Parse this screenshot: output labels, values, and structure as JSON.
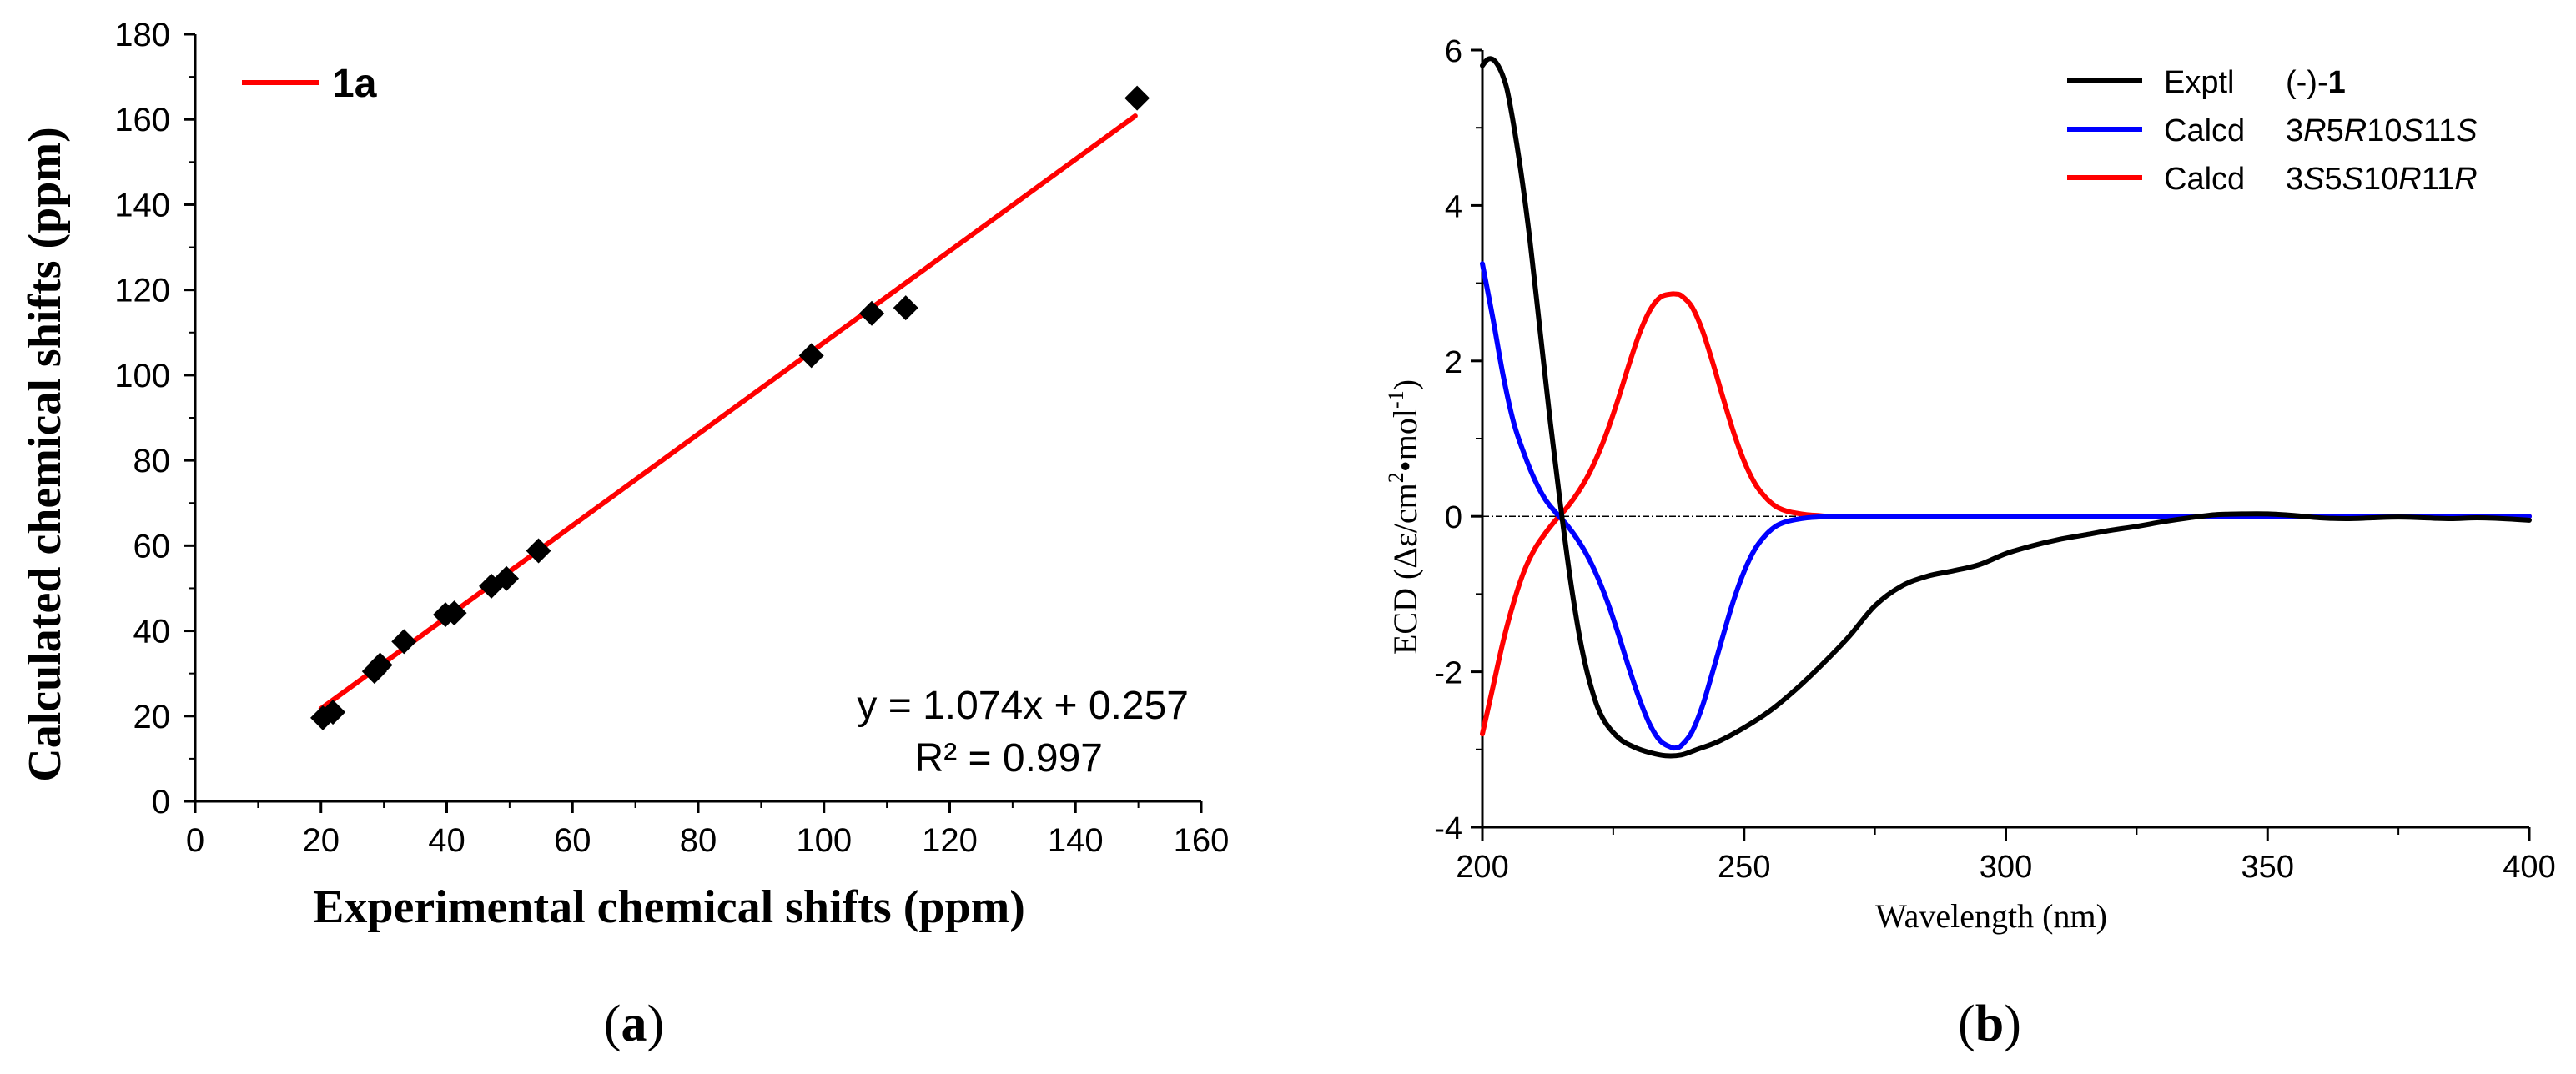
{
  "panel_labels": {
    "a": "(a)",
    "b": "(b)"
  },
  "chart_data": [
    {
      "type": "scatter",
      "panel": "a",
      "title": "",
      "xlabel": "Experimental chemical shifts (ppm)",
      "ylabel": "Calculated chemical shifts (ppm)",
      "xlim": [
        0,
        160
      ],
      "ylim": [
        0,
        180
      ],
      "xticks": [
        0,
        20,
        40,
        60,
        80,
        100,
        120,
        140,
        160
      ],
      "yticks": [
        0,
        20,
        40,
        60,
        80,
        100,
        120,
        140,
        160,
        180
      ],
      "grid": false,
      "legend": {
        "position": "top-left",
        "entries": [
          {
            "label": "1a",
            "color": "#ff0000"
          }
        ]
      },
      "points": [
        {
          "x": 20.3,
          "y": 19.6
        },
        {
          "x": 21.9,
          "y": 20.9
        },
        {
          "x": 28.5,
          "y": 30.5
        },
        {
          "x": 29.4,
          "y": 32.0
        },
        {
          "x": 33.2,
          "y": 37.5
        },
        {
          "x": 39.8,
          "y": 43.8
        },
        {
          "x": 41.2,
          "y": 44.2
        },
        {
          "x": 47.1,
          "y": 50.5
        },
        {
          "x": 49.5,
          "y": 52.3
        },
        {
          "x": 54.6,
          "y": 58.8
        },
        {
          "x": 98.0,
          "y": 104.6
        },
        {
          "x": 107.6,
          "y": 114.5
        },
        {
          "x": 113.0,
          "y": 115.8
        },
        {
          "x": 149.8,
          "y": 165.0
        }
      ],
      "point_color": "#000000",
      "fit": {
        "slope": 1.074,
        "intercept": 0.257,
        "x_range": [
          20,
          149.5
        ],
        "color": "#ff0000"
      },
      "annotations": {
        "equation": "y = 1.074x + 0.257",
        "r2": "R² = 0.997"
      }
    },
    {
      "type": "line",
      "panel": "b",
      "title": "",
      "xlabel": "Wavelength (nm)",
      "ylabel_prefix": "ECD (Δε/cm",
      "ylabel_sup1": "2",
      "ylabel_mid": "•mol",
      "ylabel_sup2": "-1",
      "ylabel_suffix": ")",
      "xlim": [
        200,
        400
      ],
      "ylim": [
        -4,
        6
      ],
      "xticks": [
        200,
        250,
        300,
        350,
        400
      ],
      "yticks": [
        -4,
        -2,
        0,
        2,
        4,
        6
      ],
      "zero_line": true,
      "grid": false,
      "legend": {
        "position": "top-right",
        "entries": [
          {
            "series": "exptl",
            "name": "Exptl",
            "color": "#000000",
            "parts": [
              {
                "t": "(-)-",
                "s": "n"
              },
              {
                "t": "1",
                "s": "b"
              }
            ]
          },
          {
            "series": "calcd_a",
            "name": "Calcd",
            "color": "#0000ff",
            "parts": [
              {
                "t": "3",
                "s": "n"
              },
              {
                "t": "R",
                "s": "i"
              },
              {
                "t": "5",
                "s": "n"
              },
              {
                "t": "R",
                "s": "i"
              },
              {
                "t": "10",
                "s": "n"
              },
              {
                "t": "S",
                "s": "i"
              },
              {
                "t": "11",
                "s": "n"
              },
              {
                "t": "S",
                "s": "i"
              }
            ]
          },
          {
            "series": "calcd_b",
            "name": "Calcd",
            "color": "#ff0000",
            "parts": [
              {
                "t": "3",
                "s": "n"
              },
              {
                "t": "S",
                "s": "i"
              },
              {
                "t": "5",
                "s": "n"
              },
              {
                "t": "S",
                "s": "i"
              },
              {
                "t": "10",
                "s": "n"
              },
              {
                "t": "R",
                "s": "i"
              },
              {
                "t": "11",
                "s": "n"
              },
              {
                "t": "R",
                "s": "i"
              }
            ]
          }
        ]
      },
      "series": [
        {
          "name": "Exptl (-)-1",
          "key": "exptl",
          "color": "#000000",
          "x": [
            200,
            201,
            202,
            203,
            204,
            205,
            207,
            209,
            211,
            213,
            215,
            217,
            219,
            221,
            223,
            226,
            229,
            232,
            235,
            238,
            241,
            245,
            250,
            255,
            260,
            265,
            270,
            275,
            280,
            285,
            290,
            295,
            300,
            305,
            310,
            315,
            320,
            325,
            330,
            335,
            340,
            345,
            350,
            355,
            360,
            365,
            370,
            375,
            380,
            385,
            390,
            395,
            400
          ],
          "y": [
            5.8,
            5.88,
            5.88,
            5.8,
            5.65,
            5.4,
            4.6,
            3.6,
            2.4,
            1.2,
            0.1,
            -0.9,
            -1.7,
            -2.25,
            -2.6,
            -2.85,
            -2.97,
            -3.04,
            -3.08,
            -3.07,
            -3.0,
            -2.9,
            -2.72,
            -2.5,
            -2.22,
            -1.9,
            -1.55,
            -1.15,
            -0.9,
            -0.77,
            -0.7,
            -0.62,
            -0.48,
            -0.38,
            -0.3,
            -0.24,
            -0.18,
            -0.13,
            -0.07,
            -0.02,
            0.02,
            0.03,
            0.03,
            0.01,
            -0.02,
            -0.03,
            -0.02,
            -0.01,
            -0.02,
            -0.03,
            -0.02,
            -0.03,
            -0.05
          ]
        },
        {
          "name": "Calcd 3R5R10S11S",
          "key": "calcd_a",
          "color": "#0000ff",
          "x": [
            200,
            202,
            204,
            206,
            208,
            210,
            212,
            214,
            216,
            218,
            220,
            222,
            224,
            226,
            228,
            230,
            232,
            234,
            236,
            237,
            238,
            240,
            242,
            244,
            246,
            248,
            250,
            252,
            254,
            256,
            258,
            260,
            262,
            264,
            266,
            268,
            270,
            275,
            280,
            290,
            300,
            320,
            340,
            360,
            380,
            400
          ],
          "y": [
            3.25,
            2.55,
            1.8,
            1.2,
            0.8,
            0.47,
            0.22,
            0.05,
            -0.1,
            -0.28,
            -0.5,
            -0.78,
            -1.12,
            -1.52,
            -1.95,
            -2.35,
            -2.68,
            -2.89,
            -2.97,
            -2.98,
            -2.95,
            -2.78,
            -2.45,
            -2.0,
            -1.53,
            -1.08,
            -0.71,
            -0.43,
            -0.25,
            -0.13,
            -0.07,
            -0.04,
            -0.02,
            -0.01,
            0.0,
            0.0,
            0.0,
            0.0,
            0.0,
            0.0,
            0.0,
            0.0,
            0.0,
            0.0,
            0.0,
            0.0
          ]
        },
        {
          "name": "Calcd 3S5S10R11R",
          "key": "calcd_b",
          "color": "#ff0000",
          "x": [
            200,
            202,
            204,
            206,
            208,
            210,
            212,
            214,
            216,
            218,
            220,
            222,
            224,
            226,
            228,
            230,
            232,
            234,
            236,
            237,
            238,
            240,
            242,
            244,
            246,
            248,
            250,
            252,
            254,
            256,
            258,
            260,
            262,
            264,
            266,
            268,
            270,
            275,
            280,
            290,
            300,
            320,
            340,
            360,
            380,
            400
          ],
          "y": [
            -2.8,
            -2.2,
            -1.6,
            -1.1,
            -0.7,
            -0.42,
            -0.22,
            -0.05,
            0.1,
            0.28,
            0.5,
            0.78,
            1.12,
            1.52,
            1.95,
            2.35,
            2.65,
            2.82,
            2.86,
            2.86,
            2.84,
            2.7,
            2.4,
            1.98,
            1.52,
            1.08,
            0.71,
            0.43,
            0.25,
            0.13,
            0.07,
            0.04,
            0.02,
            0.01,
            0.0,
            0.0,
            0.0,
            0.0,
            0.0,
            0.0,
            0.0,
            0.0,
            0.0,
            0.0,
            0.0,
            0.0
          ]
        }
      ]
    }
  ]
}
